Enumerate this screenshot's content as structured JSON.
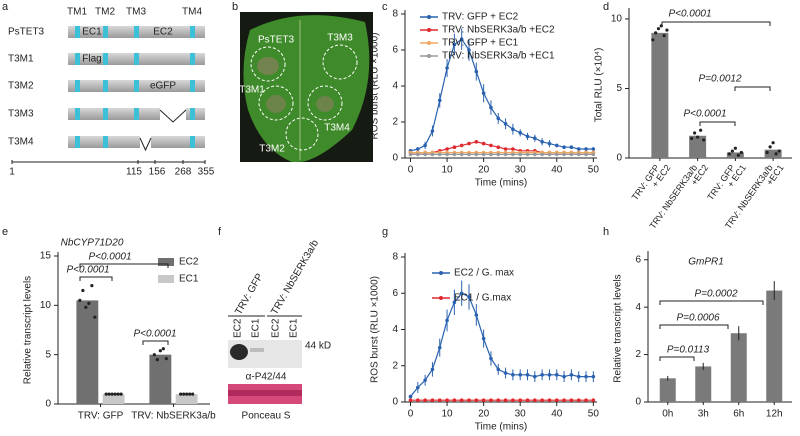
{
  "panel_labels": [
    "a",
    "b",
    "c",
    "d",
    "e",
    "f",
    "g",
    "h"
  ],
  "diagram": {
    "tm_labels": [
      "TM1",
      "TM2",
      "TM3",
      "TM4"
    ],
    "rows": [
      "PsTET3",
      "T3M1",
      "T3M2",
      "T3M3",
      "T3M4"
    ],
    "domain_labels": [
      "EC1",
      "EC2",
      "Flag",
      "eGFP"
    ],
    "positions": [
      "1",
      "115",
      "156",
      "268",
      "355"
    ]
  },
  "photo": {
    "labels": [
      "PsTET3",
      "T3M3",
      "T3M1",
      "T3M4",
      "T3M2"
    ]
  },
  "blot": {
    "groups": [
      "TRV: GFP",
      "TRV: NbSERK3a/b"
    ],
    "lanes": [
      "EC2",
      "EC1",
      "EC2",
      "EC1"
    ],
    "marker": "44 kD",
    "antibody": "α-P42/44",
    "stain": "Ponceau S"
  },
  "chart_data": [
    {
      "type": "line",
      "ylabel": "ROS burst (RLU ×1000)",
      "xlabel": "Time (mins)",
      "x": [
        0,
        2,
        4,
        6,
        8,
        10,
        12,
        14,
        16,
        18,
        20,
        22,
        24,
        26,
        28,
        30,
        32,
        34,
        36,
        38,
        40,
        42,
        44,
        46,
        48,
        50
      ],
      "xlim": [
        -1.5,
        51
      ],
      "xticks": [
        0,
        10,
        20,
        30,
        40,
        50
      ],
      "ylim": [
        0,
        8
      ],
      "yticks": [
        0,
        2,
        4,
        6,
        8
      ],
      "series": [
        {
          "name": "TRV: GFP + EC2",
          "color": "#2a62b0",
          "values": [
            0.4,
            0.5,
            0.7,
            1.5,
            3.2,
            5.0,
            6.3,
            6.6,
            6.0,
            4.8,
            3.6,
            2.8,
            2.2,
            1.9,
            1.6,
            1.4,
            1.2,
            1.1,
            0.9,
            0.8,
            0.7,
            0.6,
            0.6,
            0.5,
            0.5,
            0.5
          ],
          "errors": [
            0.1,
            0.1,
            0.2,
            0.3,
            0.4,
            0.5,
            0.6,
            0.6,
            0.6,
            0.5,
            0.5,
            0.4,
            0.3,
            0.3,
            0.3,
            0.2,
            0.2,
            0.2,
            0.2,
            0.2,
            0.1,
            0.1,
            0.1,
            0.1,
            0.1,
            0.1
          ]
        },
        {
          "name": "TRV: NbSERK3a/b +EC2",
          "color": "#e0282e",
          "values": [
            0.3,
            0.3,
            0.3,
            0.3,
            0.4,
            0.5,
            0.6,
            0.7,
            0.8,
            0.9,
            0.8,
            0.7,
            0.6,
            0.5,
            0.5,
            0.4,
            0.4,
            0.4,
            0.3,
            0.3,
            0.3,
            0.3,
            0.3,
            0.3,
            0.3,
            0.3
          ]
        },
        {
          "name": "TRV: GFP + EC1",
          "color": "#f0a860",
          "values": [
            0.3,
            0.3,
            0.3,
            0.3,
            0.3,
            0.3,
            0.3,
            0.3,
            0.3,
            0.3,
            0.3,
            0.3,
            0.3,
            0.3,
            0.3,
            0.3,
            0.3,
            0.3,
            0.3,
            0.3,
            0.3,
            0.3,
            0.3,
            0.3,
            0.3,
            0.3
          ]
        },
        {
          "name": "TRV: NbSERK3a/b +EC1",
          "color": "#9a9a9a",
          "values": [
            0.2,
            0.2,
            0.2,
            0.2,
            0.2,
            0.2,
            0.2,
            0.2,
            0.2,
            0.2,
            0.2,
            0.2,
            0.2,
            0.2,
            0.2,
            0.2,
            0.2,
            0.2,
            0.2,
            0.2,
            0.2,
            0.2,
            0.2,
            0.2,
            0.2,
            0.2
          ]
        }
      ]
    },
    {
      "type": "bar",
      "ylabel": "Total RLU (×10⁴)",
      "categories": [
        [
          "TRV: GFP",
          "+ EC2"
        ],
        [
          "TRV: NbSERK3a/b",
          "+EC2"
        ],
        [
          "TRV: GFP",
          "+ EC1"
        ],
        [
          "TRV: NbSERK3a/b",
          "+EC1"
        ]
      ],
      "values": [
        9.0,
        1.6,
        0.4,
        0.6
      ],
      "color": "#7a7a7a",
      "points": [
        [
          8.5,
          9.0,
          9.3,
          9.5,
          8.8,
          9.2
        ],
        [
          1.4,
          1.8,
          1.5,
          2.0,
          1.3
        ],
        [
          0.3,
          0.5,
          0.7,
          0.2,
          0.4
        ],
        [
          0.4,
          0.8,
          1.1,
          0.3,
          0.5
        ]
      ],
      "ylim": [
        0,
        10.5
      ],
      "yticks": [
        0,
        5,
        10
      ],
      "annotations": [
        "P<0.0001",
        "P=0.0012",
        "P<0.0001"
      ]
    },
    {
      "type": "bar",
      "title": "NbCYP71D20",
      "ylabel": "Relative transcript levels",
      "categories": [
        "TRV: GFP",
        "TRV: NbSERK3a/b"
      ],
      "series": [
        {
          "name": "EC2",
          "color": "#707070",
          "values": [
            10.5,
            5.0
          ],
          "points": [
            [
              10.5,
              11.5,
              9.8,
              10.2,
              12.0,
              8.8
            ],
            [
              5.0,
              4.5,
              5.4,
              5.6,
              4.6
            ]
          ]
        },
        {
          "name": "EC1",
          "color": "#c8c8c8",
          "values": [
            1.0,
            1.0
          ],
          "points": [
            [
              1.0,
              1.0,
              1.0,
              1.0,
              1.0,
              1.0
            ],
            [
              1.0,
              1.0,
              1.0,
              1.0,
              1.0
            ]
          ]
        }
      ],
      "ylim": [
        0,
        15
      ],
      "yticks": [
        0,
        5,
        10,
        15
      ],
      "annotations": [
        "P<0.0001",
        "P<0.0001",
        "P<0.0001"
      ]
    },
    {
      "type": "line",
      "ylabel": "ROS burst (RLU ×1000)",
      "xlabel": "Time (mins)",
      "x": [
        0,
        2,
        4,
        6,
        8,
        10,
        12,
        14,
        16,
        18,
        20,
        22,
        24,
        26,
        28,
        30,
        32,
        34,
        36,
        38,
        40,
        42,
        44,
        46,
        48,
        50
      ],
      "xlim": [
        -1.5,
        51
      ],
      "xticks": [
        0,
        10,
        20,
        30,
        40,
        50
      ],
      "ylim": [
        0,
        8
      ],
      "yticks": [
        0,
        2,
        4,
        6,
        8
      ],
      "series": [
        {
          "name": "EC2 / G. max",
          "color": "#2a62b0",
          "values": [
            0.3,
            0.8,
            1.2,
            1.8,
            3.0,
            4.5,
            5.5,
            6.0,
            5.8,
            4.8,
            3.5,
            2.4,
            1.8,
            1.6,
            1.5,
            1.5,
            1.5,
            1.4,
            1.5,
            1.5,
            1.5,
            1.4,
            1.5,
            1.4,
            1.4,
            1.4
          ],
          "errors": [
            0.1,
            0.3,
            0.3,
            0.4,
            0.5,
            0.6,
            0.7,
            0.7,
            0.7,
            0.6,
            0.5,
            0.4,
            0.3,
            0.3,
            0.3,
            0.3,
            0.3,
            0.3,
            0.3,
            0.3,
            0.3,
            0.3,
            0.3,
            0.3,
            0.3,
            0.3
          ]
        },
        {
          "name": "EC1 / G.max",
          "color": "#e0282e",
          "values": [
            0.1,
            0.1,
            0.1,
            0.1,
            0.1,
            0.1,
            0.1,
            0.1,
            0.1,
            0.1,
            0.1,
            0.1,
            0.1,
            0.1,
            0.1,
            0.1,
            0.1,
            0.1,
            0.1,
            0.1,
            0.1,
            0.1,
            0.1,
            0.1,
            0.1,
            0.1
          ]
        }
      ]
    },
    {
      "type": "bar",
      "title": "GmPR1",
      "ylabel": "Relative transcript levels",
      "categories": [
        "0h",
        "3h",
        "6h",
        "12h"
      ],
      "values": [
        1.0,
        1.5,
        2.9,
        4.7
      ],
      "errors": [
        0.1,
        0.15,
        0.3,
        0.4
      ],
      "color": "#7a7a7a",
      "ylim": [
        0,
        6.2
      ],
      "yticks": [
        0,
        2,
        4,
        6
      ],
      "annotations": [
        "P=0.0113",
        "P=0.0006",
        "P=0.0002"
      ]
    }
  ]
}
